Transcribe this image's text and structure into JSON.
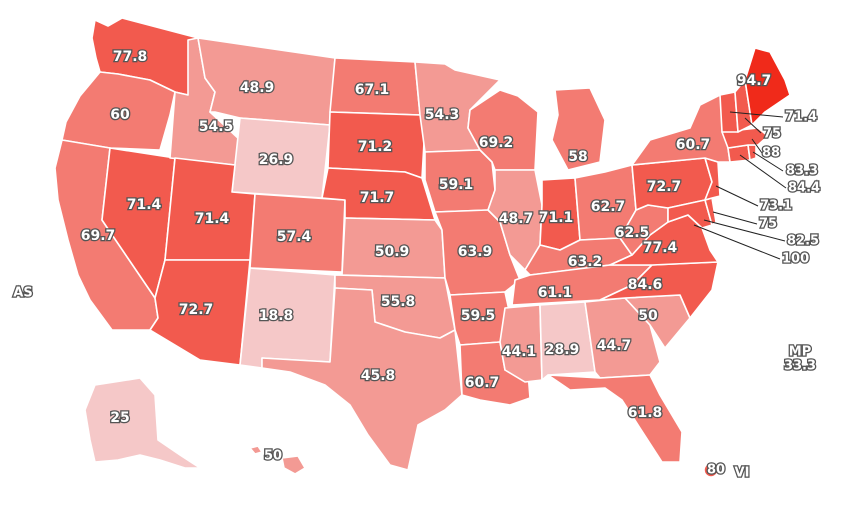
{
  "map": {
    "colors": {
      "level1": "#f5c8c8",
      "level2": "#f39a94",
      "level3": "#f37b72",
      "level4": "#f25a4e",
      "level5": "#f02a1a",
      "border": "#ffffff",
      "label_outline": "#555555"
    },
    "states": {
      "WA": "77.8",
      "OR": "60",
      "CA": "69.7",
      "NV": "71.4",
      "ID": "54.5",
      "MT": "48.9",
      "WY": "26.9",
      "UT": "71.4",
      "AZ": "72.7",
      "CO": "57.4",
      "NM": "18.8",
      "ND": "67.1",
      "SD": "71.2",
      "NE": "71.7",
      "KS": "50.9",
      "OK": "55.8",
      "TX": "45.8",
      "MN": "54.3",
      "IA": "59.1",
      "MO": "63.9",
      "AR": "59.5",
      "LA": "60.7",
      "WI": "69.2",
      "IL": "48.7",
      "MI": "58",
      "IN": "71.1",
      "OH": "62.7",
      "KY": "63.2",
      "TN": "61.1",
      "MS": "44.1",
      "AL": "28.9",
      "GA": "44.7",
      "FL": "61.8",
      "SC": "50",
      "NC": "84.6",
      "VA": "77.4",
      "WV": "62.5",
      "PA": "72.7",
      "NY": "60.7",
      "ME": "94.7",
      "AK": "25",
      "HI": "50"
    },
    "callouts": {
      "VT": "71.4",
      "NH": "75",
      "MA": "88",
      "RI": "83.3",
      "CT": "84.4",
      "NJ": "73.1",
      "DE": "75",
      "MD": "82.5",
      "DC": "100"
    },
    "territories": {
      "AS": {
        "code": "AS"
      },
      "MP": {
        "code": "MP",
        "value": "33.3"
      },
      "VI": {
        "code": "VI",
        "value": "80"
      }
    }
  }
}
